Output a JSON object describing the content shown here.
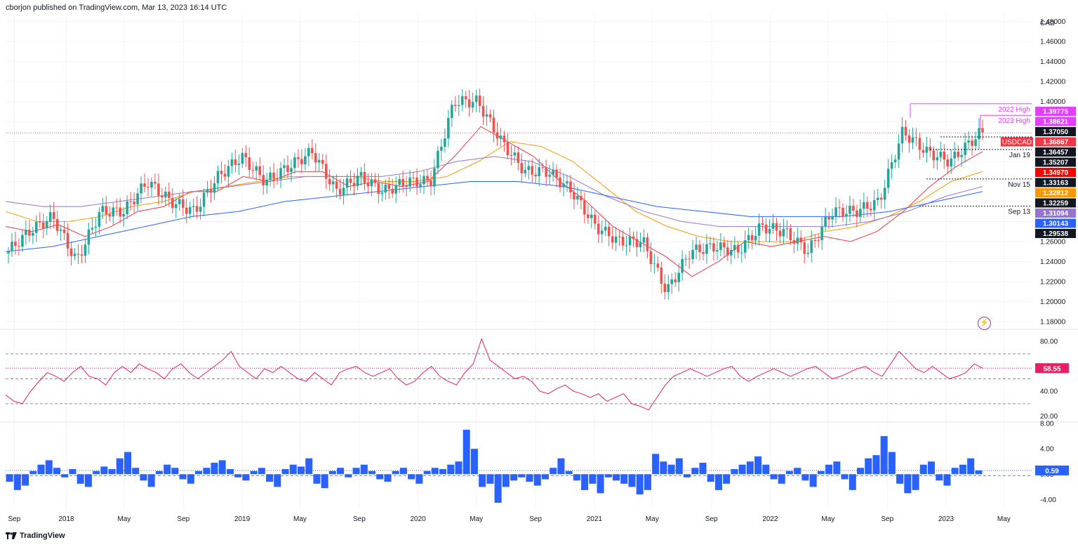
{
  "header": {
    "text": "cborjon published on TradingView.com, Mar 13, 2023 16:14 UTC"
  },
  "footer": {
    "brand": "TradingView",
    "logo_icon": "tradingview-logo-icon"
  },
  "colors": {
    "up": "#26a69a",
    "down": "#ef5350",
    "ema20": "#f23645",
    "ema50": "#ff9800",
    "ema100": "#9575cd",
    "ema200": "#2962ff",
    "rsi": "#e91e63",
    "momentum": "#2962ff",
    "grid": "#f0f3fa"
  },
  "chart_data": [
    {
      "type": "line",
      "chart": "price",
      "symbol": "USDCAD",
      "currency": "CAD",
      "timeframe": "weekly",
      "x_ticks": [
        "Sep",
        "2018",
        "May",
        "Sep",
        "2019",
        "May",
        "Sep",
        "2020",
        "May",
        "Sep",
        "2021",
        "May",
        "Sep",
        "2022",
        "May",
        "Sep",
        "2023",
        "May"
      ],
      "y_ticks": [
        "1.48000",
        "1.46000",
        "1.44000",
        "1.42000",
        "1.40000",
        "1.38000",
        "1.36000",
        "1.34000",
        "1.32000",
        "1.30000",
        "1.28000",
        "1.26000",
        "1.24000",
        "1.22000",
        "1.20000",
        "1.18000"
      ],
      "ylim": [
        1.175,
        1.4875
      ],
      "close_series": {
        "name": "USDCAD",
        "x": [
          "2017-08-28",
          "2017-10-16",
          "2017-12-04",
          "2018-01-22",
          "2018-03-12",
          "2018-04-30",
          "2018-06-18",
          "2018-08-06",
          "2018-09-24",
          "2018-11-12",
          "2018-12-31",
          "2019-02-18",
          "2019-04-08",
          "2019-05-27",
          "2019-07-15",
          "2019-09-02",
          "2019-10-21",
          "2019-12-09",
          "2020-01-27",
          "2020-03-16",
          "2020-05-04",
          "2020-06-22",
          "2020-08-10",
          "2020-09-28",
          "2020-11-16",
          "2021-01-04",
          "2021-02-22",
          "2021-04-12",
          "2021-05-31",
          "2021-07-19",
          "2021-09-06",
          "2021-10-25",
          "2021-12-13",
          "2022-01-31",
          "2022-03-21",
          "2022-05-09",
          "2022-06-27",
          "2022-08-15",
          "2022-10-03",
          "2022-11-21",
          "2023-01-09",
          "2023-03-13"
        ],
        "values": [
          1.248,
          1.27,
          1.285,
          1.24,
          1.29,
          1.29,
          1.32,
          1.3,
          1.29,
          1.325,
          1.345,
          1.32,
          1.335,
          1.35,
          1.31,
          1.325,
          1.31,
          1.32,
          1.32,
          1.4,
          1.4,
          1.36,
          1.33,
          1.33,
          1.31,
          1.275,
          1.26,
          1.26,
          1.21,
          1.25,
          1.255,
          1.25,
          1.275,
          1.27,
          1.25,
          1.29,
          1.29,
          1.3,
          1.37,
          1.35,
          1.34,
          1.3687
        ]
      },
      "moving_averages": [
        {
          "color": "#f23645",
          "values": [
            1.275,
            1.27,
            1.277,
            1.265,
            1.275,
            1.29,
            1.295,
            1.31,
            1.31,
            1.325,
            1.32,
            1.33,
            1.33,
            1.315,
            1.32,
            1.315,
            1.32,
            1.345,
            1.375,
            1.36,
            1.345,
            1.32,
            1.3,
            1.275,
            1.26,
            1.245,
            1.225,
            1.24,
            1.26,
            1.255,
            1.26,
            1.265,
            1.26,
            1.27,
            1.29,
            1.315,
            1.335,
            1.35
          ]
        },
        {
          "color": "#ff9800",
          "values": [
            1.29,
            1.28,
            1.28,
            1.285,
            1.295,
            1.3,
            1.31,
            1.315,
            1.32,
            1.325,
            1.325,
            1.325,
            1.32,
            1.32,
            1.325,
            1.34,
            1.36,
            1.355,
            1.34,
            1.315,
            1.29,
            1.275,
            1.265,
            1.26,
            1.26,
            1.26,
            1.27,
            1.275,
            1.285,
            1.3,
            1.32,
            1.33
          ]
        },
        {
          "color": "#9575cd",
          "values": [
            1.3,
            1.295,
            1.295,
            1.3,
            1.305,
            1.31,
            1.315,
            1.32,
            1.325,
            1.325,
            1.325,
            1.33,
            1.34,
            1.345,
            1.34,
            1.325,
            1.305,
            1.29,
            1.28,
            1.275,
            1.275,
            1.275,
            1.275,
            1.28,
            1.29,
            1.305,
            1.315
          ]
        },
        {
          "color": "#2962ff",
          "values": [
            1.25,
            1.255,
            1.265,
            1.275,
            1.285,
            1.29,
            1.3,
            1.305,
            1.31,
            1.315,
            1.32,
            1.32,
            1.315,
            1.305,
            1.295,
            1.29,
            1.285,
            1.285,
            1.285,
            1.29,
            1.3,
            1.31
          ]
        }
      ],
      "horizontal_levels": [
        {
          "label": "2022 High",
          "value": 1.39775,
          "color": "#e040fb"
        },
        {
          "label": "2023 High",
          "value": 1.38621,
          "color": "#e040fb"
        },
        {
          "label": "Jan 19",
          "value": 1.35207,
          "color": "#131722"
        },
        {
          "label": "Nov 15",
          "value": 1.32259,
          "color": "#131722"
        },
        {
          "label": "Sep 13",
          "value": 1.29538,
          "color": "#131722"
        },
        {
          "label": "",
          "value": 1.36457,
          "color": "#131722"
        }
      ],
      "price_tags": [
        {
          "label": "",
          "value": 1.39775,
          "bg": "#e040fb",
          "fg": "#ffffff"
        },
        {
          "label": "",
          "value": 1.38621,
          "bg": "#e040fb",
          "fg": "#ffffff"
        },
        {
          "label": "",
          "value": 1.3705,
          "bg": "#131722",
          "fg": "#ffffff"
        },
        {
          "label": "USDCAD",
          "value": 1.36867,
          "bg": "#f23645",
          "fg": "#ffffff"
        },
        {
          "label": "",
          "value": 1.36457,
          "bg": "#131722",
          "fg": "#ffffff"
        },
        {
          "label": "",
          "value": 1.35207,
          "bg": "#131722",
          "fg": "#ffffff"
        },
        {
          "label": "",
          "value": 1.3497,
          "bg": "#ff0000",
          "fg": "#ffffff"
        },
        {
          "label": "",
          "value": 1.33163,
          "bg": "#131722",
          "fg": "#ffffff"
        },
        {
          "label": "",
          "value": 1.32812,
          "bg": "#ff9800",
          "fg": "#ffffff"
        },
        {
          "label": "",
          "value": 1.32259,
          "bg": "#131722",
          "fg": "#ffffff"
        },
        {
          "label": "",
          "value": 1.31094,
          "bg": "#9575cd",
          "fg": "#ffffff"
        },
        {
          "label": "",
          "value": 1.30143,
          "bg": "#2962ff",
          "fg": "#ffffff"
        },
        {
          "label": "",
          "value": 1.29538,
          "bg": "#131722",
          "fg": "#ffffff"
        }
      ],
      "tag_texts": [
        "1.39775",
        "1.38621",
        "1.37050",
        "1.36867",
        "1.36457",
        "1.35207",
        "1.34970",
        "1.33163",
        "1.32812",
        "1.32259",
        "1.31094",
        "1.30143",
        "1.29538"
      ],
      "current_price_line": 1.36867,
      "grid": true
    },
    {
      "type": "line",
      "chart": "rsi",
      "y_ticks": [
        "80.00",
        "60.00",
        "40.00",
        "20.00"
      ],
      "ylim": [
        17,
        88
      ],
      "levels": [
        70,
        50,
        30
      ],
      "current": "58.55",
      "current_value": 58.55,
      "values": [
        37,
        32,
        30,
        40,
        48,
        55,
        52,
        48,
        55,
        60,
        52,
        50,
        45,
        55,
        60,
        55,
        62,
        58,
        55,
        50,
        58,
        62,
        55,
        50,
        55,
        60,
        65,
        72,
        60,
        55,
        50,
        58,
        55,
        60,
        55,
        50,
        48,
        55,
        50,
        45,
        55,
        58,
        60,
        55,
        52,
        55,
        58,
        50,
        45,
        48,
        55,
        60,
        52,
        48,
        45,
        55,
        62,
        82,
        65,
        60,
        55,
        50,
        52,
        48,
        40,
        38,
        42,
        45,
        40,
        38,
        35,
        38,
        32,
        35,
        38,
        30,
        28,
        25,
        35,
        45,
        52,
        55,
        58,
        55,
        52,
        55,
        58,
        60,
        52,
        48,
        52,
        55,
        58,
        55,
        52,
        55,
        58,
        60,
        55,
        50,
        52,
        55,
        58,
        60,
        55,
        52,
        62,
        72,
        65,
        58,
        55,
        60,
        55,
        50,
        52,
        55,
        62,
        58.55
      ]
    },
    {
      "type": "bar",
      "chart": "momentum",
      "y_ticks": [
        "8.00",
        "4.00",
        "0.00",
        "-4.00"
      ],
      "ylim": [
        -5.5,
        8
      ],
      "current": "0.59",
      "current_value": 0.59,
      "values": [
        -1.2,
        -2.5,
        -1.8,
        0.5,
        1.5,
        2.2,
        1.0,
        -0.5,
        0.8,
        -1.5,
        -2.0,
        0.5,
        1.2,
        0.8,
        2.5,
        3.5,
        1.0,
        -1.0,
        -2.0,
        0.5,
        1.5,
        1.0,
        -0.8,
        -1.5,
        0.5,
        1.0,
        1.8,
        2.2,
        0.8,
        -0.5,
        -1.0,
        0.5,
        1.0,
        -1.2,
        -2.0,
        0.8,
        1.5,
        1.2,
        2.5,
        -1.5,
        -2.2,
        0.5,
        1.0,
        -0.5,
        1.0,
        1.5,
        0.5,
        -0.8,
        -1.2,
        0.5,
        1.0,
        -0.8,
        -1.5,
        0.5,
        1.0,
        0.8,
        1.5,
        2.0,
        7.0,
        4.0,
        -2.0,
        -1.5,
        -4.5,
        -2.0,
        -1.0,
        -0.5,
        -1.2,
        -1.8,
        -0.8,
        1.0,
        2.5,
        0.5,
        -1.0,
        -2.5,
        -1.5,
        -3.0,
        -0.5,
        -1.0,
        -1.5,
        -2.0,
        -3.2,
        -2.5,
        3.2,
        2.0,
        1.5,
        2.5,
        -0.5,
        1.0,
        1.8,
        -1.2,
        -2.5,
        -1.5,
        0.8,
        1.5,
        2.0,
        2.8,
        1.5,
        -0.8,
        -1.5,
        0.5,
        1.0,
        -1.0,
        -2.0,
        0.5,
        1.5,
        2.0,
        -0.8,
        -2.5,
        1.0,
        2.5,
        3.0,
        6.0,
        3.5,
        -1.5,
        -3.0,
        -2.5,
        1.5,
        2.0,
        -1.0,
        -1.8,
        1.0,
        1.5,
        2.5,
        0.59
      ],
      "zero_value": 0,
      "ref_value": -0.25
    }
  ]
}
